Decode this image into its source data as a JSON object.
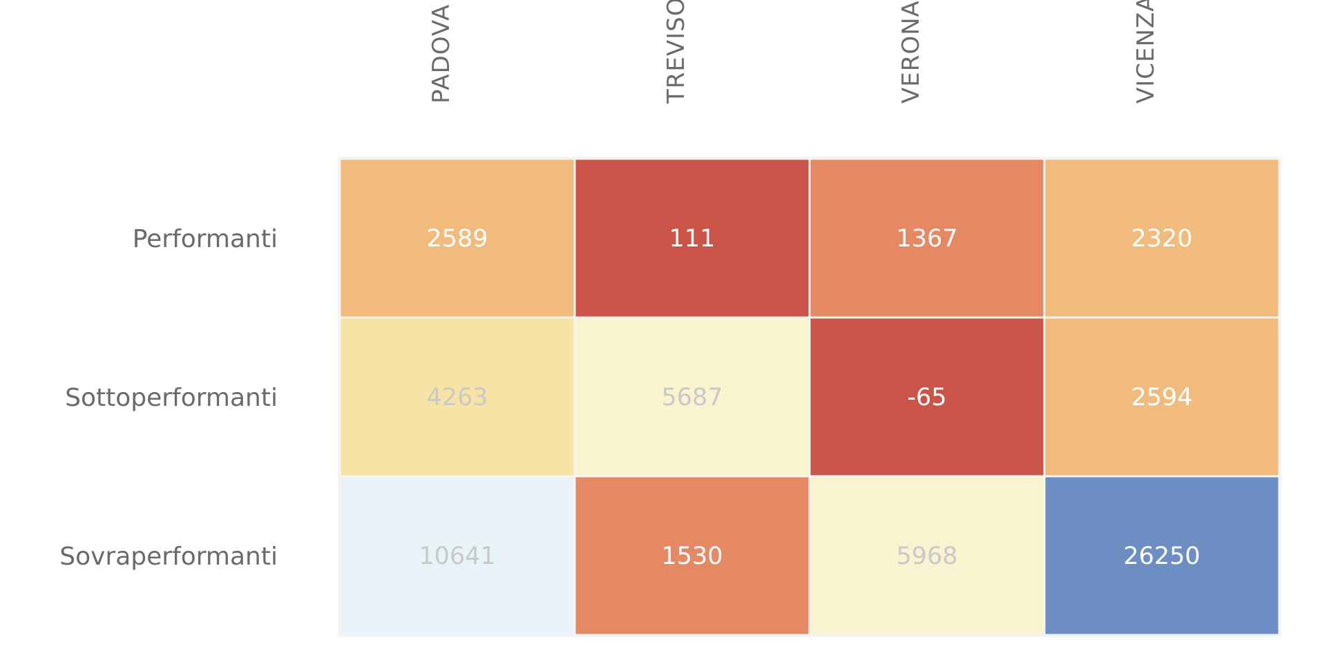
{
  "chart_data": {
    "type": "heatmap",
    "columns": [
      "PADOVA",
      "TREVISO",
      "VERONA",
      "VICENZA"
    ],
    "rows": [
      "Performanti",
      "Sottoperformanti",
      "Sovraperformanti"
    ],
    "values": [
      [
        2589,
        111,
        1367,
        2320
      ],
      [
        4263,
        5687,
        -65,
        2594
      ],
      [
        10641,
        1530,
        5968,
        26250
      ]
    ],
    "cell_colors": [
      [
        "#f1bb7e",
        "#cb5448",
        "#e58864",
        "#f1bb7e"
      ],
      [
        "#f8e3a6",
        "#faf3cf",
        "#cb5448",
        "#f1bb7e"
      ],
      [
        "#e8f3f7",
        "#e58864",
        "#faf3cf",
        "#6c8ec2"
      ]
    ],
    "text_colors": [
      [
        "#ffffff",
        "#ffffff",
        "#ffffff",
        "#ffffff"
      ],
      [
        "#c9c9c9",
        "#c9c9c9",
        "#ffffff",
        "#ffffff"
      ],
      [
        "#c9c9c9",
        "#ffffff",
        "#c9c9c9",
        "#ffffff"
      ]
    ],
    "title": "",
    "xlabel": "",
    "ylabel": "",
    "legend": "none",
    "grid": false
  }
}
